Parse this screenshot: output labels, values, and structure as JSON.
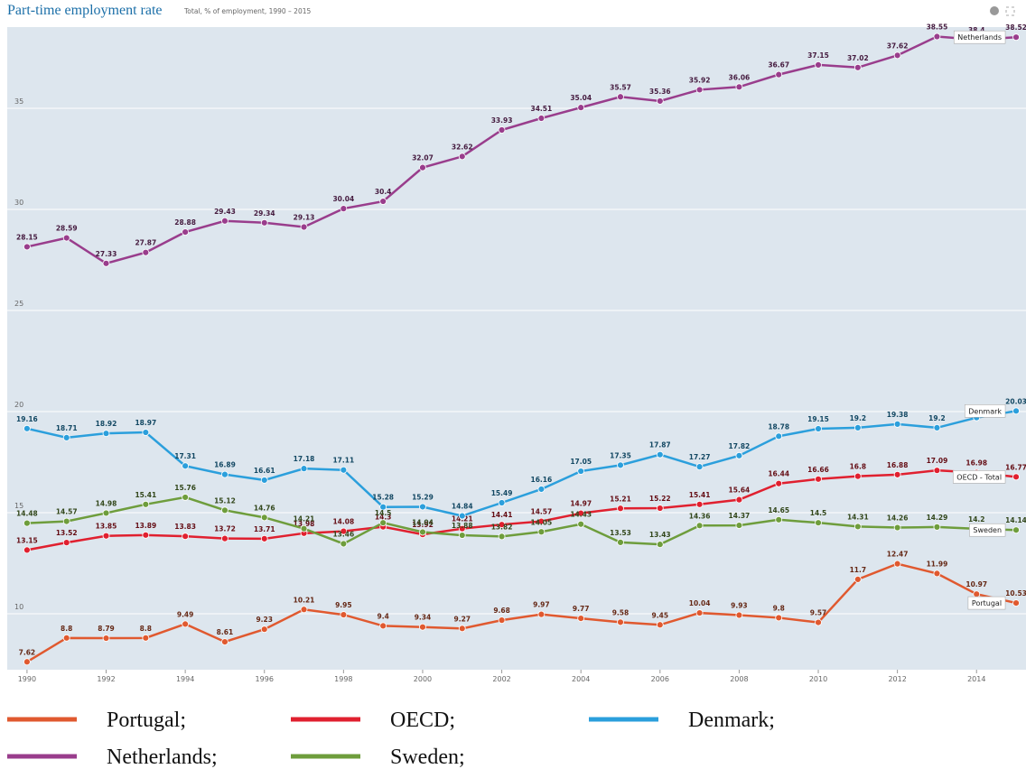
{
  "chart_data": {
    "type": "line",
    "title": "Part-time employment rate",
    "subtitle": "Total, % of employment, 1990 – 2015",
    "x": [
      1990,
      1991,
      1992,
      1993,
      1994,
      1995,
      1996,
      1997,
      1998,
      1999,
      2000,
      2001,
      2002,
      2003,
      2004,
      2005,
      2006,
      2007,
      2008,
      2009,
      2010,
      2011,
      2012,
      2013,
      2014,
      2015
    ],
    "xlim": [
      1989.5,
      2015.25
    ],
    "xticks": [
      1990,
      1992,
      1994,
      1996,
      1998,
      2000,
      2002,
      2004,
      2006,
      2008,
      2010,
      2012,
      2014
    ],
    "ylim": [
      7.23,
      39.02
    ],
    "yticks": [
      10,
      15,
      20,
      25,
      30,
      35
    ],
    "grid": true,
    "series": [
      {
        "name": "Portugal;",
        "end_label": "Portugal",
        "color": "#e0592f",
        "values": [
          7.62,
          8.8,
          8.79,
          8.8,
          9.49,
          8.61,
          9.23,
          10.21,
          9.95,
          9.4,
          9.34,
          9.27,
          9.68,
          9.97,
          9.77,
          9.58,
          9.45,
          10.04,
          9.93,
          9.8,
          9.57,
          11.7,
          12.47,
          11.99,
          10.97,
          10.53
        ]
      },
      {
        "name": "OECD;",
        "end_label": "OECD - Total",
        "color": "#e0202f",
        "values": [
          13.15,
          13.52,
          13.85,
          13.89,
          13.83,
          13.72,
          13.71,
          13.98,
          14.08,
          14.3,
          13.92,
          14.21,
          14.41,
          14.57,
          14.97,
          15.21,
          15.22,
          15.41,
          15.64,
          16.44,
          16.66,
          16.8,
          16.88,
          17.09,
          16.98,
          16.77
        ]
      },
      {
        "name": "Denmark;",
        "end_label": "Denmark",
        "color": "#2b9fdc",
        "values": [
          19.16,
          18.71,
          18.92,
          18.97,
          17.31,
          16.89,
          16.61,
          17.18,
          17.11,
          15.28,
          15.29,
          14.84,
          15.49,
          16.16,
          17.05,
          17.35,
          17.87,
          17.27,
          17.82,
          18.78,
          19.15,
          19.2,
          19.38,
          19.2,
          19.7,
          20.03
        ]
      },
      {
        "name": "Netherlands;",
        "end_label": "Netherlands",
        "color": "#993d8c",
        "values": [
          28.15,
          28.59,
          27.33,
          27.87,
          28.88,
          29.43,
          29.34,
          29.13,
          30.04,
          30.4,
          32.07,
          32.62,
          33.93,
          34.51,
          35.04,
          35.57,
          35.36,
          35.92,
          36.06,
          36.67,
          37.15,
          37.02,
          37.62,
          38.55,
          38.4,
          38.52
        ]
      },
      {
        "name": "Sweden;",
        "end_label": "Sweden",
        "color": "#6e9d3c",
        "values": [
          14.48,
          14.57,
          14.98,
          15.41,
          15.76,
          15.12,
          14.76,
          14.21,
          13.46,
          14.5,
          14.04,
          13.88,
          13.82,
          14.05,
          14.43,
          13.53,
          13.43,
          14.36,
          14.37,
          14.65,
          14.5,
          14.31,
          14.26,
          14.29,
          14.2,
          14.14
        ]
      }
    ]
  }
}
